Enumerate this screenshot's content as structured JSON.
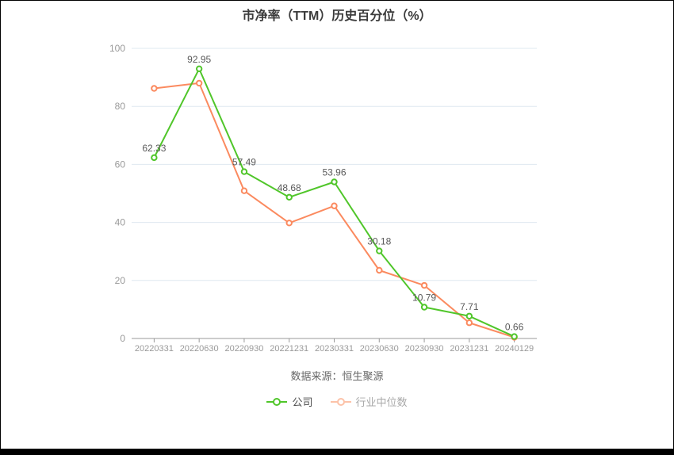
{
  "chart_data": {
    "type": "line",
    "title": "市净率（TTM）历史百分位（%）",
    "source_note": "数据来源：恒生聚源",
    "xlabel": "",
    "ylabel": "",
    "ylim": [
      0,
      100
    ],
    "yticks": [
      0,
      20,
      40,
      60,
      80,
      100
    ],
    "grid": true,
    "legend_position": "bottom",
    "categories": [
      "20220331",
      "20220630",
      "20220930",
      "20221231",
      "20230331",
      "20230630",
      "20230930",
      "20231231",
      "20240129"
    ],
    "series": [
      {
        "name": "公司",
        "color": "#50c62a",
        "show_labels": true,
        "values": [
          62.33,
          92.95,
          57.49,
          48.68,
          53.96,
          30.18,
          10.79,
          7.71,
          0.66
        ]
      },
      {
        "name": "行业中位数",
        "color": "#fb8a5f",
        "show_labels": false,
        "values": [
          86.2,
          88.0,
          50.9,
          39.8,
          45.7,
          23.5,
          18.3,
          5.4,
          0.4
        ]
      }
    ]
  },
  "legend": {
    "items": [
      {
        "marker_color": "#50c62a",
        "label_color": "#4c4c4c"
      },
      {
        "marker_color": "#fcc2a8",
        "label_color": "#a8a8a8"
      }
    ]
  },
  "colors": {
    "grid_line": "#dfe8f0",
    "axis_line": "#999999",
    "tick_label": "#999999",
    "data_label": "#595959",
    "title": "#3b3b3b",
    "source": "#666666"
  }
}
